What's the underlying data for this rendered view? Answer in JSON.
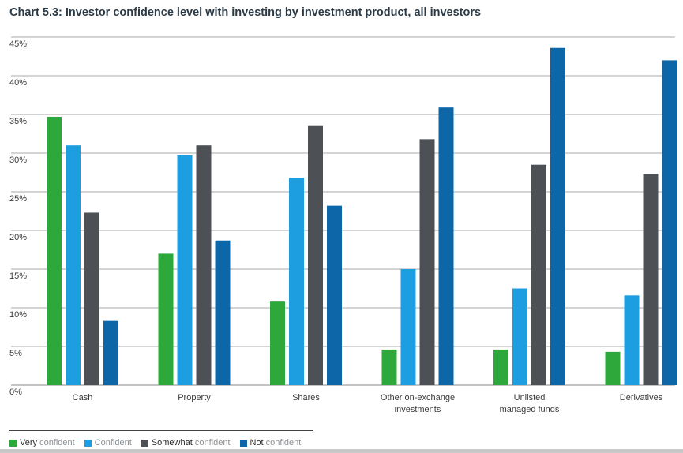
{
  "chart_data": {
    "type": "bar",
    "title": "Chart 5.3: Investor confidence level with investing by investment product, all investors",
    "xlabel": "",
    "ylabel": "",
    "ylim": [
      0,
      45
    ],
    "yticks": [
      0,
      5,
      10,
      15,
      20,
      25,
      30,
      35,
      40,
      45
    ],
    "ytick_labels": [
      "0%",
      "5%",
      "10%",
      "15%",
      "20%",
      "25%",
      "30%",
      "35%",
      "40%",
      "45%"
    ],
    "categories": [
      [
        "Cash"
      ],
      [
        "Property"
      ],
      [
        "Shares"
      ],
      [
        "Other on-exchange",
        "investments"
      ],
      [
        "Unlisted",
        "managed funds"
      ],
      [
        "Derivatives"
      ]
    ],
    "series": [
      {
        "name": "Very confident",
        "label_parts": [
          "Very",
          " confident"
        ],
        "color": "#2fa83b",
        "values": [
          34.7,
          17.0,
          10.8,
          4.6,
          4.6,
          4.3
        ]
      },
      {
        "name": "Confident",
        "label_parts": [
          "",
          "Confident"
        ],
        "color": "#1d9ee0",
        "values": [
          31.0,
          29.7,
          26.8,
          15.0,
          12.5,
          11.6
        ]
      },
      {
        "name": "Somewhat confident",
        "label_parts": [
          "Somewhat",
          " confident"
        ],
        "color": "#4d5055",
        "values": [
          22.3,
          31.0,
          33.5,
          31.8,
          28.5,
          27.3
        ]
      },
      {
        "name": "Not confident",
        "label_parts": [
          "Not",
          " confident"
        ],
        "color": "#0d66a8",
        "values": [
          8.3,
          18.7,
          23.2,
          35.9,
          43.6,
          42.0
        ]
      }
    ],
    "grid": true,
    "legend": "bottom-left"
  }
}
